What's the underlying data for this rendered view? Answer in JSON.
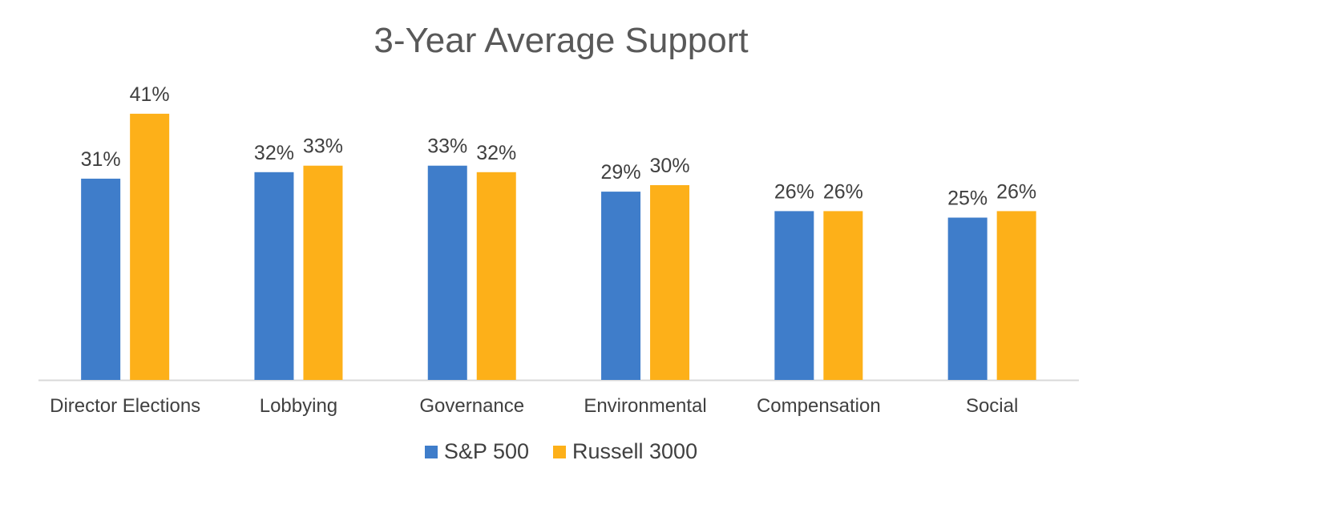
{
  "chart_data": {
    "type": "bar",
    "title": "3-Year Average Support",
    "categories": [
      "Director Elections",
      "Lobbying",
      "Governance",
      "Environmental",
      "Compensation",
      "Social"
    ],
    "series": [
      {
        "name": "S&P 500",
        "color": "#3f7dca",
        "values": [
          31,
          32,
          33,
          29,
          26,
          25
        ],
        "labels": [
          "31%",
          "32%",
          "33%",
          "29%",
          "26%",
          "25%"
        ]
      },
      {
        "name": "Russell 3000",
        "color": "#fdb019",
        "values": [
          41,
          33,
          32,
          30,
          26,
          26
        ],
        "labels": [
          "41%",
          "33%",
          "32%",
          "30%",
          "26%",
          "26%"
        ]
      }
    ],
    "ylim": [
      0,
      45
    ],
    "grid": false,
    "legend_position": "bottom"
  }
}
